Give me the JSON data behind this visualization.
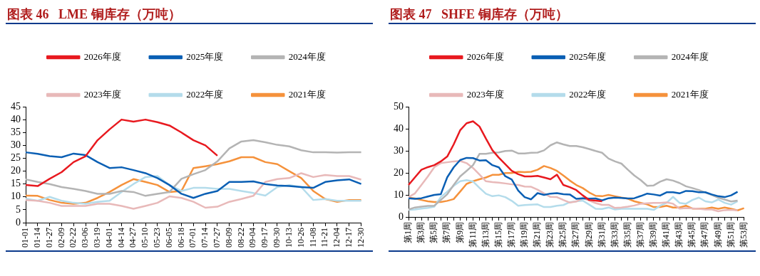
{
  "chart_data": [
    {
      "type": "line",
      "title": "图表 46   LME 铜库存（万吨）",
      "categories": [
        "01-01",
        "01-14",
        "01-27",
        "02-09",
        "02-22",
        "03-06",
        "03-19",
        "04-01",
        "04-14",
        "04-27",
        "05-10",
        "05-23",
        "06-05",
        "06-18",
        "07-01",
        "07-14",
        "07-27",
        "08-09",
        "08-22",
        "09-04",
        "09-17",
        "09-30",
        "10-13",
        "10-26",
        "11-08",
        "11-21",
        "12-04",
        "12-17",
        "12-30"
      ],
      "ylim": [
        0,
        45
      ],
      "yticks": [
        0,
        5,
        10,
        15,
        20,
        25,
        30,
        35,
        40,
        45
      ],
      "legend": "top",
      "series": [
        {
          "name": "2026年度",
          "color": "#e8191f",
          "values": [
            14.6,
            14.2,
            17,
            19.6,
            23.5,
            25.8,
            32,
            36.2,
            40,
            39.2,
            40,
            39,
            37.7,
            35,
            32,
            30,
            26,
            null,
            null,
            null,
            null,
            null,
            null,
            null,
            null,
            null,
            null,
            null,
            null
          ]
        },
        {
          "name": "2025年度",
          "color": "#0a5fb4",
          "values": [
            27.3,
            26.7,
            25.8,
            25.4,
            26.8,
            26.2,
            23.5,
            21.2,
            21.5,
            20.4,
            19.2,
            17.3,
            14.6,
            11.2,
            9.6,
            11.2,
            12.3,
            15.8,
            15.8,
            16,
            15,
            14.4,
            14.2,
            13.8,
            13.5,
            15.8,
            16.4,
            16.8,
            15
          ]
        },
        {
          "name": "2024年度",
          "color": "#b4b4b4",
          "values": [
            16.8,
            15.8,
            15,
            13.8,
            13.1,
            12.3,
            11.2,
            11.2,
            12.3,
            11.9,
            10.4,
            11.2,
            11.9,
            17,
            18.8,
            20.4,
            23.8,
            28.8,
            31.5,
            32,
            31.2,
            30.2,
            29.6,
            28.1,
            27.3,
            27.3,
            27.2,
            27.3,
            27.3
          ]
        },
        {
          "name": "2023年度",
          "color": "#e8b9b9",
          "values": [
            8.8,
            8.5,
            7.7,
            6.5,
            6.5,
            6.5,
            7.3,
            7.3,
            6.5,
            5.4,
            6.5,
            7.7,
            10.2,
            9.6,
            8.1,
            5.8,
            6.2,
            8.1,
            9.2,
            10.4,
            15.8,
            16.9,
            17.3,
            19.2,
            17.7,
            18.5,
            18.1,
            18.1,
            16.7
          ]
        },
        {
          "name": "2022年度",
          "color": "#b4dceb",
          "values": [
            9.3,
            8.5,
            10,
            8.5,
            7.7,
            7.3,
            8.1,
            8.5,
            11.9,
            15,
            17.7,
            18.1,
            14.6,
            12.3,
            13.5,
            13.5,
            13.1,
            13.1,
            12.3,
            11.5,
            10.5,
            13.8,
            14.6,
            13.8,
            8.8,
            9.2,
            8.5,
            8.5,
            8.5
          ]
        },
        {
          "name": "2021年度",
          "color": "#f5923c",
          "values": [
            10.5,
            10.4,
            8.8,
            7.7,
            7.3,
            7.7,
            9.6,
            11.9,
            14.6,
            16.9,
            15.8,
            14.6,
            11.9,
            12.3,
            21.2,
            21.9,
            22.7,
            23.8,
            25.4,
            25.4,
            23.5,
            22.7,
            20,
            17.3,
            12.3,
            9.2,
            8.1,
            8.8,
            8.8
          ]
        }
      ]
    },
    {
      "type": "line",
      "title": "图表 47   SHFE 铜库存（万吨）",
      "categories": [
        "第1周",
        null,
        "第3周",
        null,
        "第5周",
        null,
        "第7周",
        null,
        "第9周",
        null,
        "第11周",
        null,
        "第13周",
        null,
        "第15周",
        null,
        "第17周",
        null,
        "第19周",
        null,
        "第21周",
        null,
        "第23周",
        null,
        "第25周",
        null,
        "第27周",
        null,
        "第29周",
        null,
        "第31周",
        null,
        "第33周",
        null,
        "第35周",
        null,
        "第37周",
        null,
        "第39周",
        null,
        "第41周",
        null,
        "第43周",
        null,
        "第45周",
        null,
        "第47周",
        null,
        "第49周",
        null,
        "第51周",
        null,
        "第53周"
      ],
      "ylim": [
        0,
        50
      ],
      "yticks": [
        0,
        10,
        20,
        30,
        40,
        50
      ],
      "legend": "top",
      "series": [
        {
          "name": "2026年度",
          "color": "#e8191f",
          "values": [
            14.5,
            18,
            21.4,
            22.6,
            23.5,
            25.2,
            27.4,
            32.9,
            39.3,
            42.5,
            43.4,
            41,
            35.5,
            30.3,
            26.9,
            23.9,
            20.9,
            19.4,
            18.4,
            18.4,
            18.6,
            17.9,
            17.1,
            19.2,
            14.5,
            13.5,
            12.2,
            9.8,
            7.7,
            7.4,
            7.1,
            null,
            null,
            null,
            null,
            null,
            null,
            null,
            null,
            null,
            null,
            null,
            null,
            null,
            null,
            null,
            null,
            null,
            null,
            null,
            null,
            null,
            null
          ]
        },
        {
          "name": "2025年度",
          "color": "#0a5fb4",
          "values": [
            8.5,
            8.2,
            8.5,
            9.3,
            10,
            10.3,
            18,
            22.5,
            25.8,
            26.8,
            26.7,
            25.6,
            25.7,
            23.5,
            22.5,
            18.5,
            17,
            12,
            9,
            8,
            10.8,
            10,
            10.6,
            10.8,
            10.3,
            10.2,
            8.2,
            8.5,
            8.3,
            8.4,
            7.5,
            8.5,
            8.8,
            8.6,
            8.4,
            8.5,
            9.5,
            10.6,
            10.2,
            9.7,
            11.2,
            11.2,
            10.7,
            11.8,
            11.7,
            11.2,
            11.2,
            10.2,
            9.4,
            9,
            9.8,
            11.4,
            null
          ]
        },
        {
          "name": "2024年度",
          "color": "#b4b4b4",
          "values": [
            3.4,
            4.3,
            4.7,
            5,
            5.1,
            7.7,
            10.3,
            14.5,
            18.4,
            20.9,
            23.5,
            28.6,
            28.6,
            29.1,
            29.3,
            29.9,
            30.1,
            28.8,
            28.8,
            29.1,
            29.2,
            30.2,
            32.5,
            33.8,
            32.9,
            32.2,
            32.2,
            31.6,
            30.8,
            29.9,
            29.1,
            26.5,
            25.2,
            24.2,
            21.4,
            18.8,
            16.7,
            14.1,
            14.3,
            16,
            17.1,
            16.5,
            15.4,
            13.9,
            13.1,
            12.2,
            11.1,
            10,
            8.8,
            7.9,
            7,
            7.4,
            null
          ]
        },
        {
          "name": "2023年度",
          "color": "#e8b9b9",
          "values": [
            9,
            10.7,
            14.5,
            18.4,
            22.6,
            24.4,
            24.8,
            25.2,
            25.4,
            24.4,
            22.2,
            19.2,
            16.2,
            15.8,
            15.6,
            15.2,
            14.8,
            14.5,
            13.8,
            13.7,
            12.4,
            10.7,
            9.1,
            9,
            7.7,
            6.5,
            7,
            8.5,
            7.5,
            6.3,
            5.5,
            5.5,
            4.1,
            4.3,
            4.7,
            5.2,
            6,
            6.2,
            6.4,
            6.4,
            6.6,
            6,
            3.8,
            4,
            3.9,
            3.7,
            3.4,
            3.4,
            2.6,
            3.1,
            3.2,
            3,
            null
          ]
        },
        {
          "name": "2022年度",
          "color": "#b4dceb",
          "values": [
            3.2,
            3.4,
            3.8,
            4.1,
            4.7,
            9,
            11.5,
            14.1,
            16.2,
            16.7,
            16.1,
            13.2,
            10.5,
            9.4,
            9.8,
            9,
            7.3,
            5.1,
            5.4,
            5.6,
            5.7,
            4.5,
            4.5,
            5.1,
            5.4,
            6.7,
            7.1,
            7.4,
            5.6,
            3.7,
            3.6,
            4.3,
            3.4,
            3.7,
            3.7,
            3.7,
            3.7,
            3.7,
            3.2,
            5.1,
            6.4,
            9.1,
            6.4,
            6,
            7.7,
            8.8,
            7.1,
            6.6,
            7.9,
            6.4,
            5.6,
            7.1,
            null
          ]
        },
        {
          "name": "2021年度",
          "color": "#f5923c",
          "values": [
            8.8,
            8.4,
            7.7,
            7.1,
            6.8,
            6.8,
            7.3,
            8.1,
            11.5,
            15,
            16.2,
            17.1,
            17.9,
            19.1,
            19.1,
            19.9,
            19.9,
            20.5,
            20.3,
            20.5,
            21.4,
            23.1,
            22.2,
            20.9,
            18.8,
            16.5,
            14.5,
            13.1,
            11.1,
            9.6,
            9.4,
            10,
            9.4,
            8.8,
            8.3,
            7.1,
            6.4,
            5.7,
            4.5,
            4.5,
            5.1,
            4.3,
            4.3,
            5.1,
            3.8,
            3.8,
            3.7,
            4.3,
            3.7,
            4.3,
            3.7,
            3,
            4
          ]
        }
      ]
    }
  ]
}
